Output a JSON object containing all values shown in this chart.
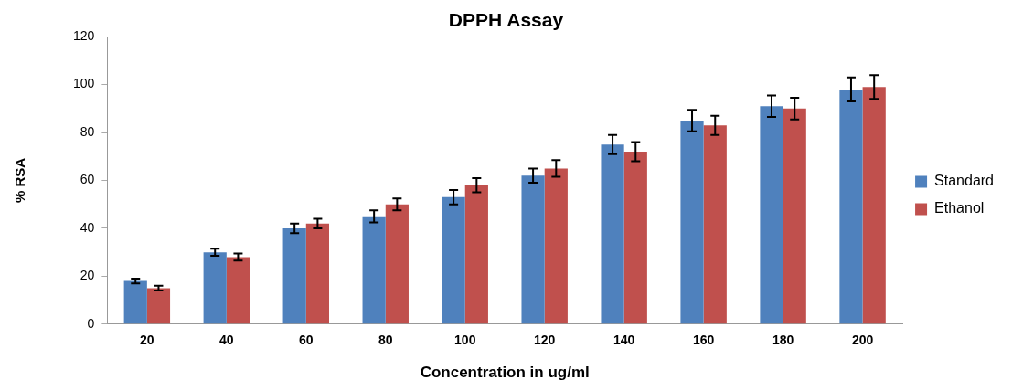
{
  "chart_data": {
    "type": "bar",
    "title": "DPPH Assay",
    "xlabel": "Concentration in ug/ml",
    "ylabel": "% RSA",
    "categories": [
      "20",
      "40",
      "60",
      "80",
      "100",
      "120",
      "140",
      "160",
      "180",
      "200"
    ],
    "series": [
      {
        "name": "Standard",
        "color": "#4f81bd",
        "values": [
          18,
          30,
          40,
          45,
          53,
          62,
          75,
          85,
          91,
          98
        ],
        "errors": [
          1,
          1.5,
          2,
          2.5,
          3,
          3,
          4,
          4.5,
          4.5,
          5
        ]
      },
      {
        "name": "Ethanol",
        "color": "#c0504d",
        "values": [
          15,
          28,
          42,
          50,
          58,
          65,
          72,
          83,
          90,
          99
        ],
        "errors": [
          1,
          1.5,
          2,
          2.5,
          3,
          3.5,
          4,
          4,
          4.5,
          5
        ]
      }
    ],
    "ylim": [
      0,
      120
    ],
    "yticks": [
      0,
      20,
      40,
      60,
      80,
      100,
      120
    ],
    "grid": false,
    "legend": "right"
  }
}
